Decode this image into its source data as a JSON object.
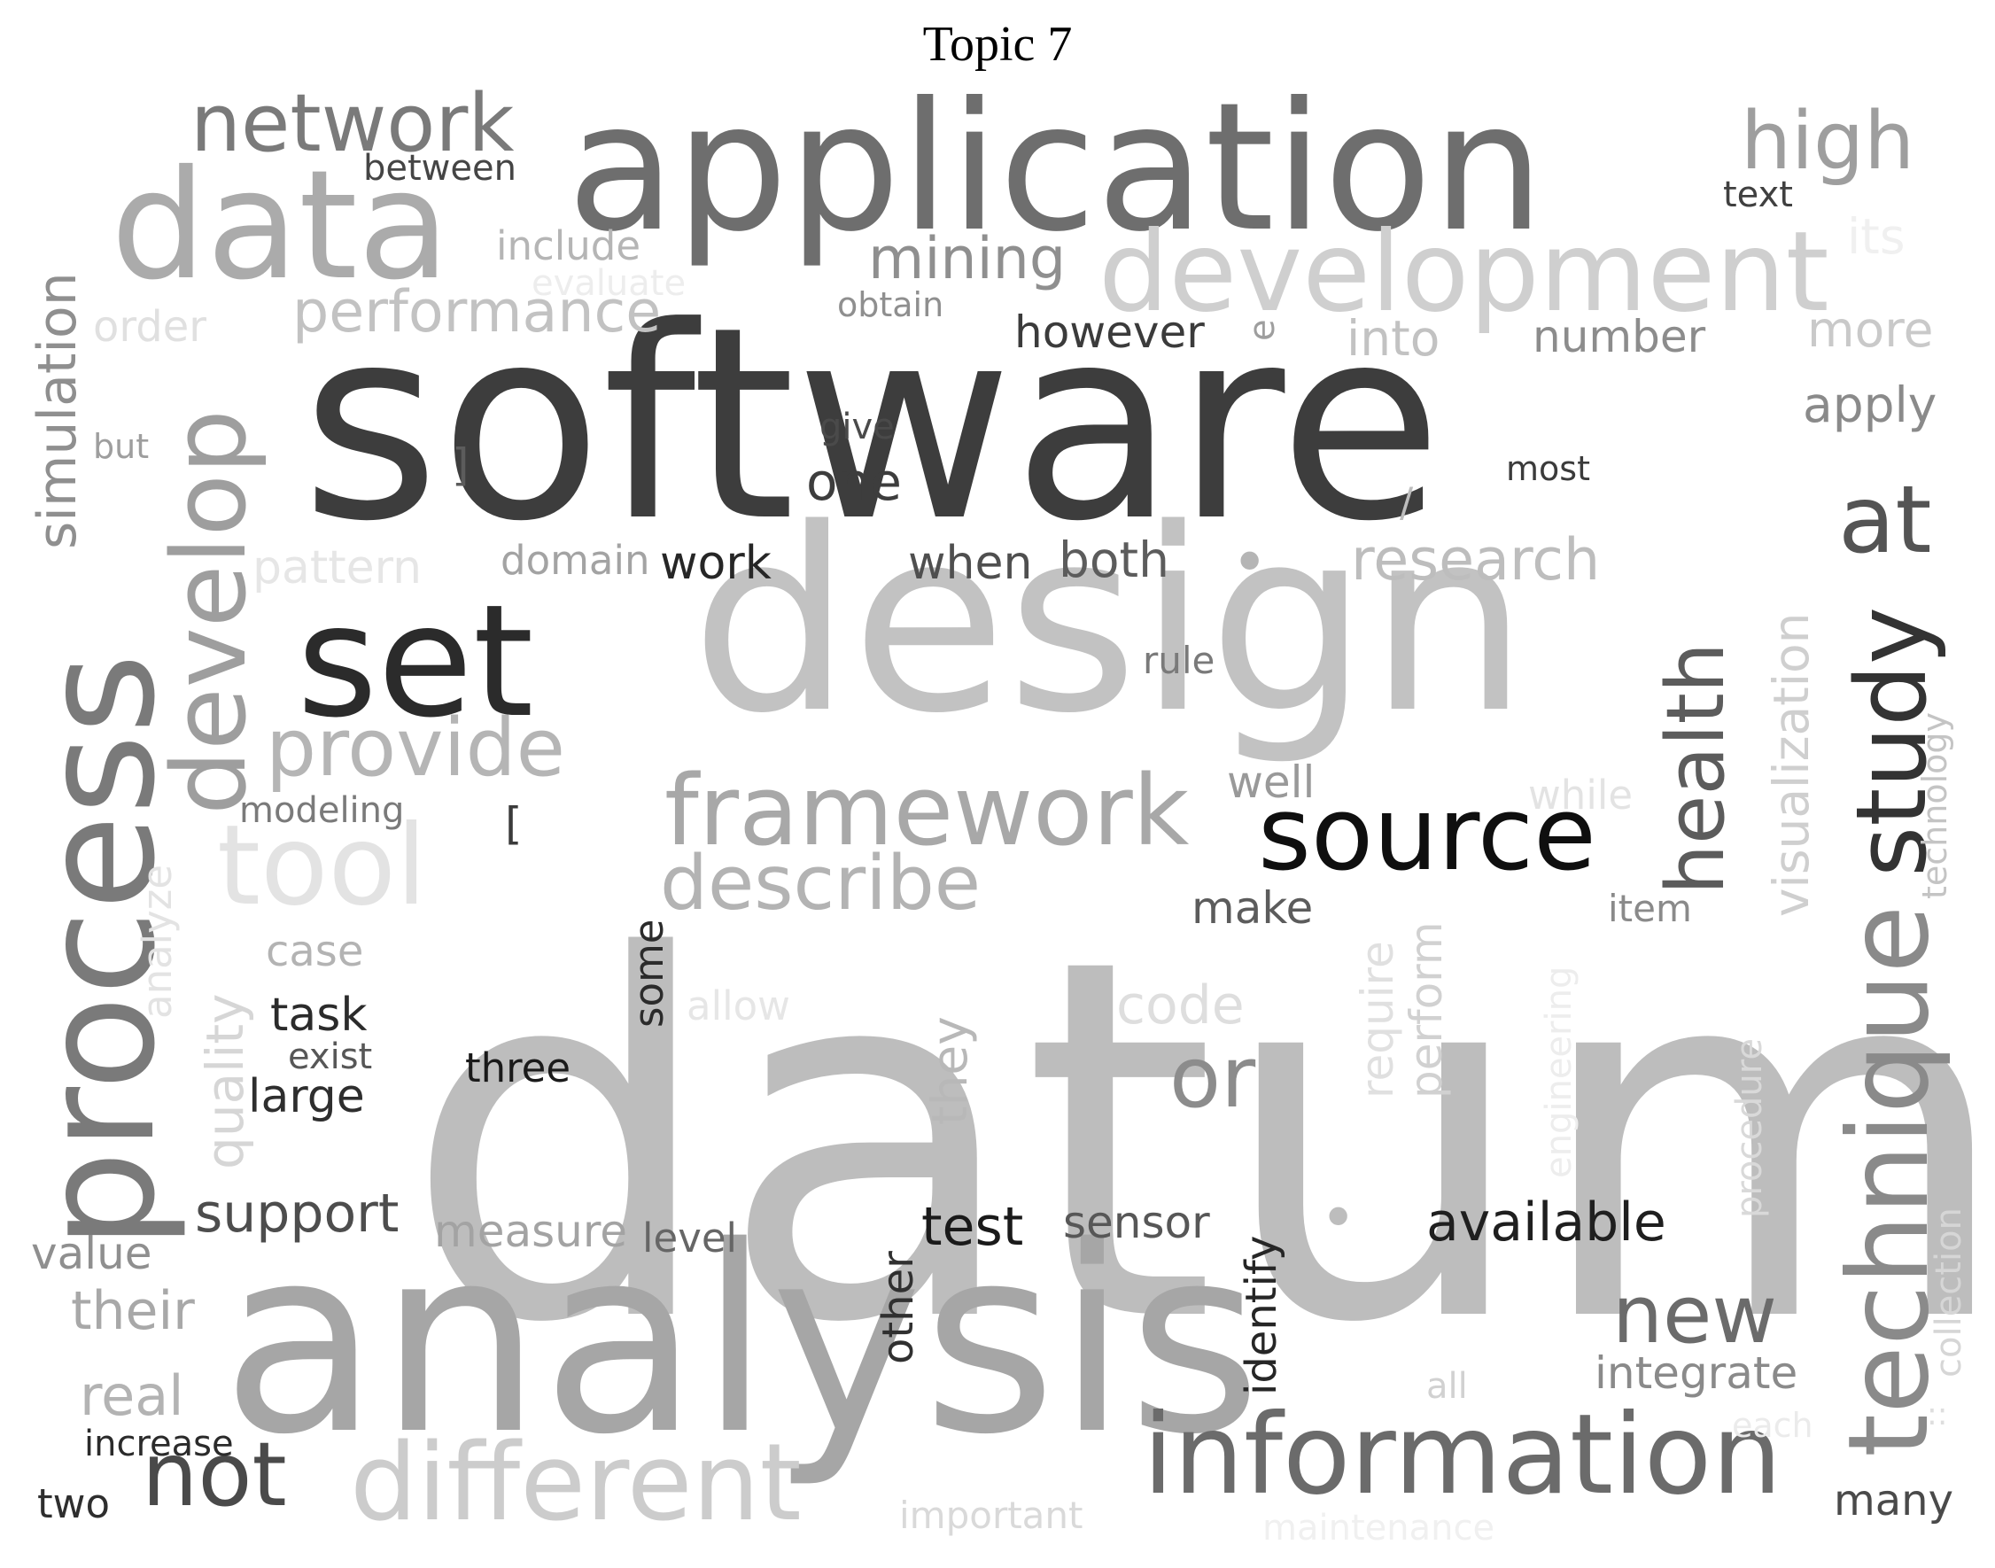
{
  "title": "Topic 7",
  "words": [
    {
      "text": "datum",
      "color": "#bdbdbd"
    },
    {
      "text": "software",
      "color": "#3d3d3d"
    },
    {
      "text": "analysis",
      "color": "#a6a6a6"
    },
    {
      "text": "design",
      "color": "#c2c2c2"
    },
    {
      "text": "application",
      "color": "#6e6e6e"
    },
    {
      "text": "data",
      "color": "#ababab"
    },
    {
      "text": "development",
      "color": "#cfcfcf"
    },
    {
      "text": "process",
      "color": "#7a7a7a"
    },
    {
      "text": "set",
      "color": "#2b2b2b"
    },
    {
      "text": "technique",
      "color": "#8a8a8a"
    },
    {
      "text": "information",
      "color": "#6b6b6b"
    },
    {
      "text": "different",
      "color": "#cccccc"
    },
    {
      "text": "framework",
      "color": "#a8a8a8"
    },
    {
      "text": "develop",
      "color": "#9e9e9e"
    },
    {
      "text": "tool",
      "color": "#e3e3e3"
    },
    {
      "text": "source",
      "color": "#0f0f0f"
    },
    {
      "text": "study",
      "color": "#333333"
    },
    {
      "text": "health",
      "color": "#5c5c5c"
    },
    {
      "text": "network",
      "color": "#7a7a7a"
    },
    {
      "text": "provide",
      "color": "#b5b5b5"
    },
    {
      "text": "describe",
      "color": "#b3b3b3"
    },
    {
      "text": "not",
      "color": "#4a4a4a"
    },
    {
      "text": "new",
      "color": "#6b6b6b"
    },
    {
      "text": "high",
      "color": "#9e9e9e"
    },
    {
      "text": "at",
      "color": "#545454"
    },
    {
      "text": "or",
      "color": "#8c8c8c"
    },
    {
      "text": "mining",
      "color": "#8f8f8f"
    },
    {
      "text": "performance",
      "color": "#c2c2c2"
    },
    {
      "text": "research",
      "color": "#bdbdbd"
    },
    {
      "text": "simulation",
      "color": "#8f8f8f"
    },
    {
      "text": "visualization",
      "color": "#cfcfcf"
    },
    {
      "text": "available",
      "color": "#1f1f1f"
    },
    {
      "text": "support",
      "color": "#4d4d4d"
    },
    {
      "text": "test",
      "color": "#1a1a1a"
    },
    {
      "text": "code",
      "color": "#dedede"
    },
    {
      "text": "their",
      "color": "#a8a8a8"
    },
    {
      "text": "real",
      "color": "#b3b3b3"
    },
    {
      "text": "integrate",
      "color": "#8a8a8a"
    },
    {
      "text": "more",
      "color": "#c9c9c9"
    },
    {
      "text": "apply",
      "color": "#8a8a8a"
    },
    {
      "text": "into",
      "color": "#c2c2c2"
    },
    {
      "text": "number",
      "color": "#8c8c8c"
    },
    {
      "text": "however",
      "color": "#3b3b3b"
    },
    {
      "text": "one",
      "color": "#3d3d3d"
    },
    {
      "text": "when",
      "color": "#4f4f4f"
    },
    {
      "text": "both",
      "color": "#5c5c5c"
    },
    {
      "text": "work",
      "color": "#262626"
    },
    {
      "text": "domain",
      "color": "#a3a3a3"
    },
    {
      "text": "pattern",
      "color": "#e6e6e6"
    },
    {
      "text": "order",
      "color": "#e0e0e0"
    },
    {
      "text": "include",
      "color": "#b5b5b5"
    },
    {
      "text": "evaluate",
      "color": "#ededed"
    },
    {
      "text": "between",
      "color": "#454545"
    },
    {
      "text": "obtain",
      "color": "#8f8f8f"
    },
    {
      "text": "text",
      "color": "#404040"
    },
    {
      "text": "its",
      "color": "#f0f0f0"
    },
    {
      "text": "but",
      "color": "#9e9e9e"
    },
    {
      "text": "give",
      "color": "#4a4a4a"
    },
    {
      "text": "most",
      "color": "#3b3b3b"
    },
    {
      "text": "rule",
      "color": "#7a7a7a"
    },
    {
      "text": "well",
      "color": "#999999"
    },
    {
      "text": "while",
      "color": "#e3e3e3"
    },
    {
      "text": "make",
      "color": "#5c5c5c"
    },
    {
      "text": "item",
      "color": "#8a8a8a"
    },
    {
      "text": "modeling",
      "color": "#7a7a7a"
    },
    {
      "text": "case",
      "color": "#b3b3b3"
    },
    {
      "text": "task",
      "color": "#2b2b2b"
    },
    {
      "text": "exist",
      "color": "#575757"
    },
    {
      "text": "large",
      "color": "#2e2e2e"
    },
    {
      "text": "three",
      "color": "#1a1a1a"
    },
    {
      "text": "allow",
      "color": "#e6e6e6"
    },
    {
      "text": "some",
      "color": "#2b2b2b"
    },
    {
      "text": "quality",
      "color": "#d6d6d6"
    },
    {
      "text": "analyze",
      "color": "#e3e3e3"
    },
    {
      "text": "they",
      "color": "#b8b8b8"
    },
    {
      "text": "require",
      "color": "#e0e0e0"
    },
    {
      "text": "perform",
      "color": "#d1d1d1"
    },
    {
      "text": "engineering",
      "color": "#ededed"
    },
    {
      "text": "procedure",
      "color": "#d9d9d9"
    },
    {
      "text": "technology",
      "color": "#c4c4c4"
    },
    {
      "text": "collection",
      "color": "#d6d6d6"
    },
    {
      "text": "value",
      "color": "#8f8f8f"
    },
    {
      "text": "measure",
      "color": "#a3a3a3"
    },
    {
      "text": "level",
      "color": "#666666"
    },
    {
      "text": "sensor",
      "color": "#575757"
    },
    {
      "text": "identify",
      "color": "#262626"
    },
    {
      "text": "other",
      "color": "#303030"
    },
    {
      "text": "increase",
      "color": "#2b2b2b"
    },
    {
      "text": "two",
      "color": "#2e2e2e"
    },
    {
      "text": "important",
      "color": "#d9d9d9"
    },
    {
      "text": "many",
      "color": "#4a4a4a"
    },
    {
      "text": "all",
      "color": "#d1d1d1"
    },
    {
      "text": "each",
      "color": "#ebebeb"
    },
    {
      "text": "maintenance",
      "color": "#f0f0f0"
    },
    {
      "text": "e",
      "color": "#9e9e9e"
    },
    {
      "text": "]",
      "color": "#5c5c5c"
    },
    {
      "text": "[",
      "color": "#3b3b3b"
    },
    {
      "text": "/",
      "color": "#bdbdbd"
    },
    {
      "text": "•",
      "color": "#b5b5b5"
    },
    {
      "text": "•",
      "color": "#bdbdbd"
    },
    {
      "text": "::",
      "color": "#dedede"
    }
  ]
}
